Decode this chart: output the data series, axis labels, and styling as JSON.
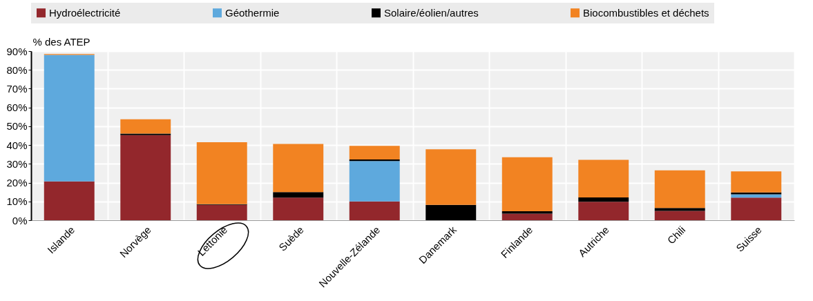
{
  "chart_data": {
    "type": "bar",
    "stacked": true,
    "ylabel": "% des ATEP",
    "categories": [
      "Islande",
      "Norvège",
      "Lettonie",
      "Suède",
      "Nouvelle-Zélande",
      "Danemark",
      "Finlande",
      "Autriche",
      "Chili",
      "Suisse"
    ],
    "series": [
      {
        "name": "Hydroélectricité",
        "color": "#93272c",
        "values": [
          20.7,
          45.3,
          8.2,
          12,
          10,
          0,
          3.5,
          9.8,
          5,
          12
        ]
      },
      {
        "name": "Géothermie",
        "color": "#5ea9dd",
        "values": [
          67.3,
          0,
          0,
          0,
          21.5,
          0,
          0,
          0,
          0,
          1.8
        ]
      },
      {
        "name": "Solaire/éolien/autres",
        "color": "#000000",
        "values": [
          0,
          0.8,
          0.3,
          3,
          0.8,
          8.2,
          1.3,
          2.3,
          1.5,
          1
        ]
      },
      {
        "name": "Biocombustibles et déchets",
        "color": "#f28322",
        "values": [
          0.4,
          7.6,
          33,
          25.6,
          7.3,
          29.5,
          28.7,
          20,
          20,
          11.2
        ]
      }
    ],
    "ylim": [
      0,
      90
    ],
    "yticks": [
      {
        "value": 0,
        "label": "0%"
      },
      {
        "value": 10,
        "label": "10%"
      },
      {
        "value": 20,
        "label": "20%"
      },
      {
        "value": 30,
        "label": "30%"
      },
      {
        "value": 40,
        "label": "40%"
      },
      {
        "value": 50,
        "label": "50%"
      },
      {
        "value": 60,
        "label": "60%"
      },
      {
        "value": 70,
        "label": "70%"
      },
      {
        "value": 80,
        "label": "80%"
      },
      {
        "value": 90,
        "label": "90%"
      }
    ],
    "grid": true,
    "legend": "top"
  }
}
